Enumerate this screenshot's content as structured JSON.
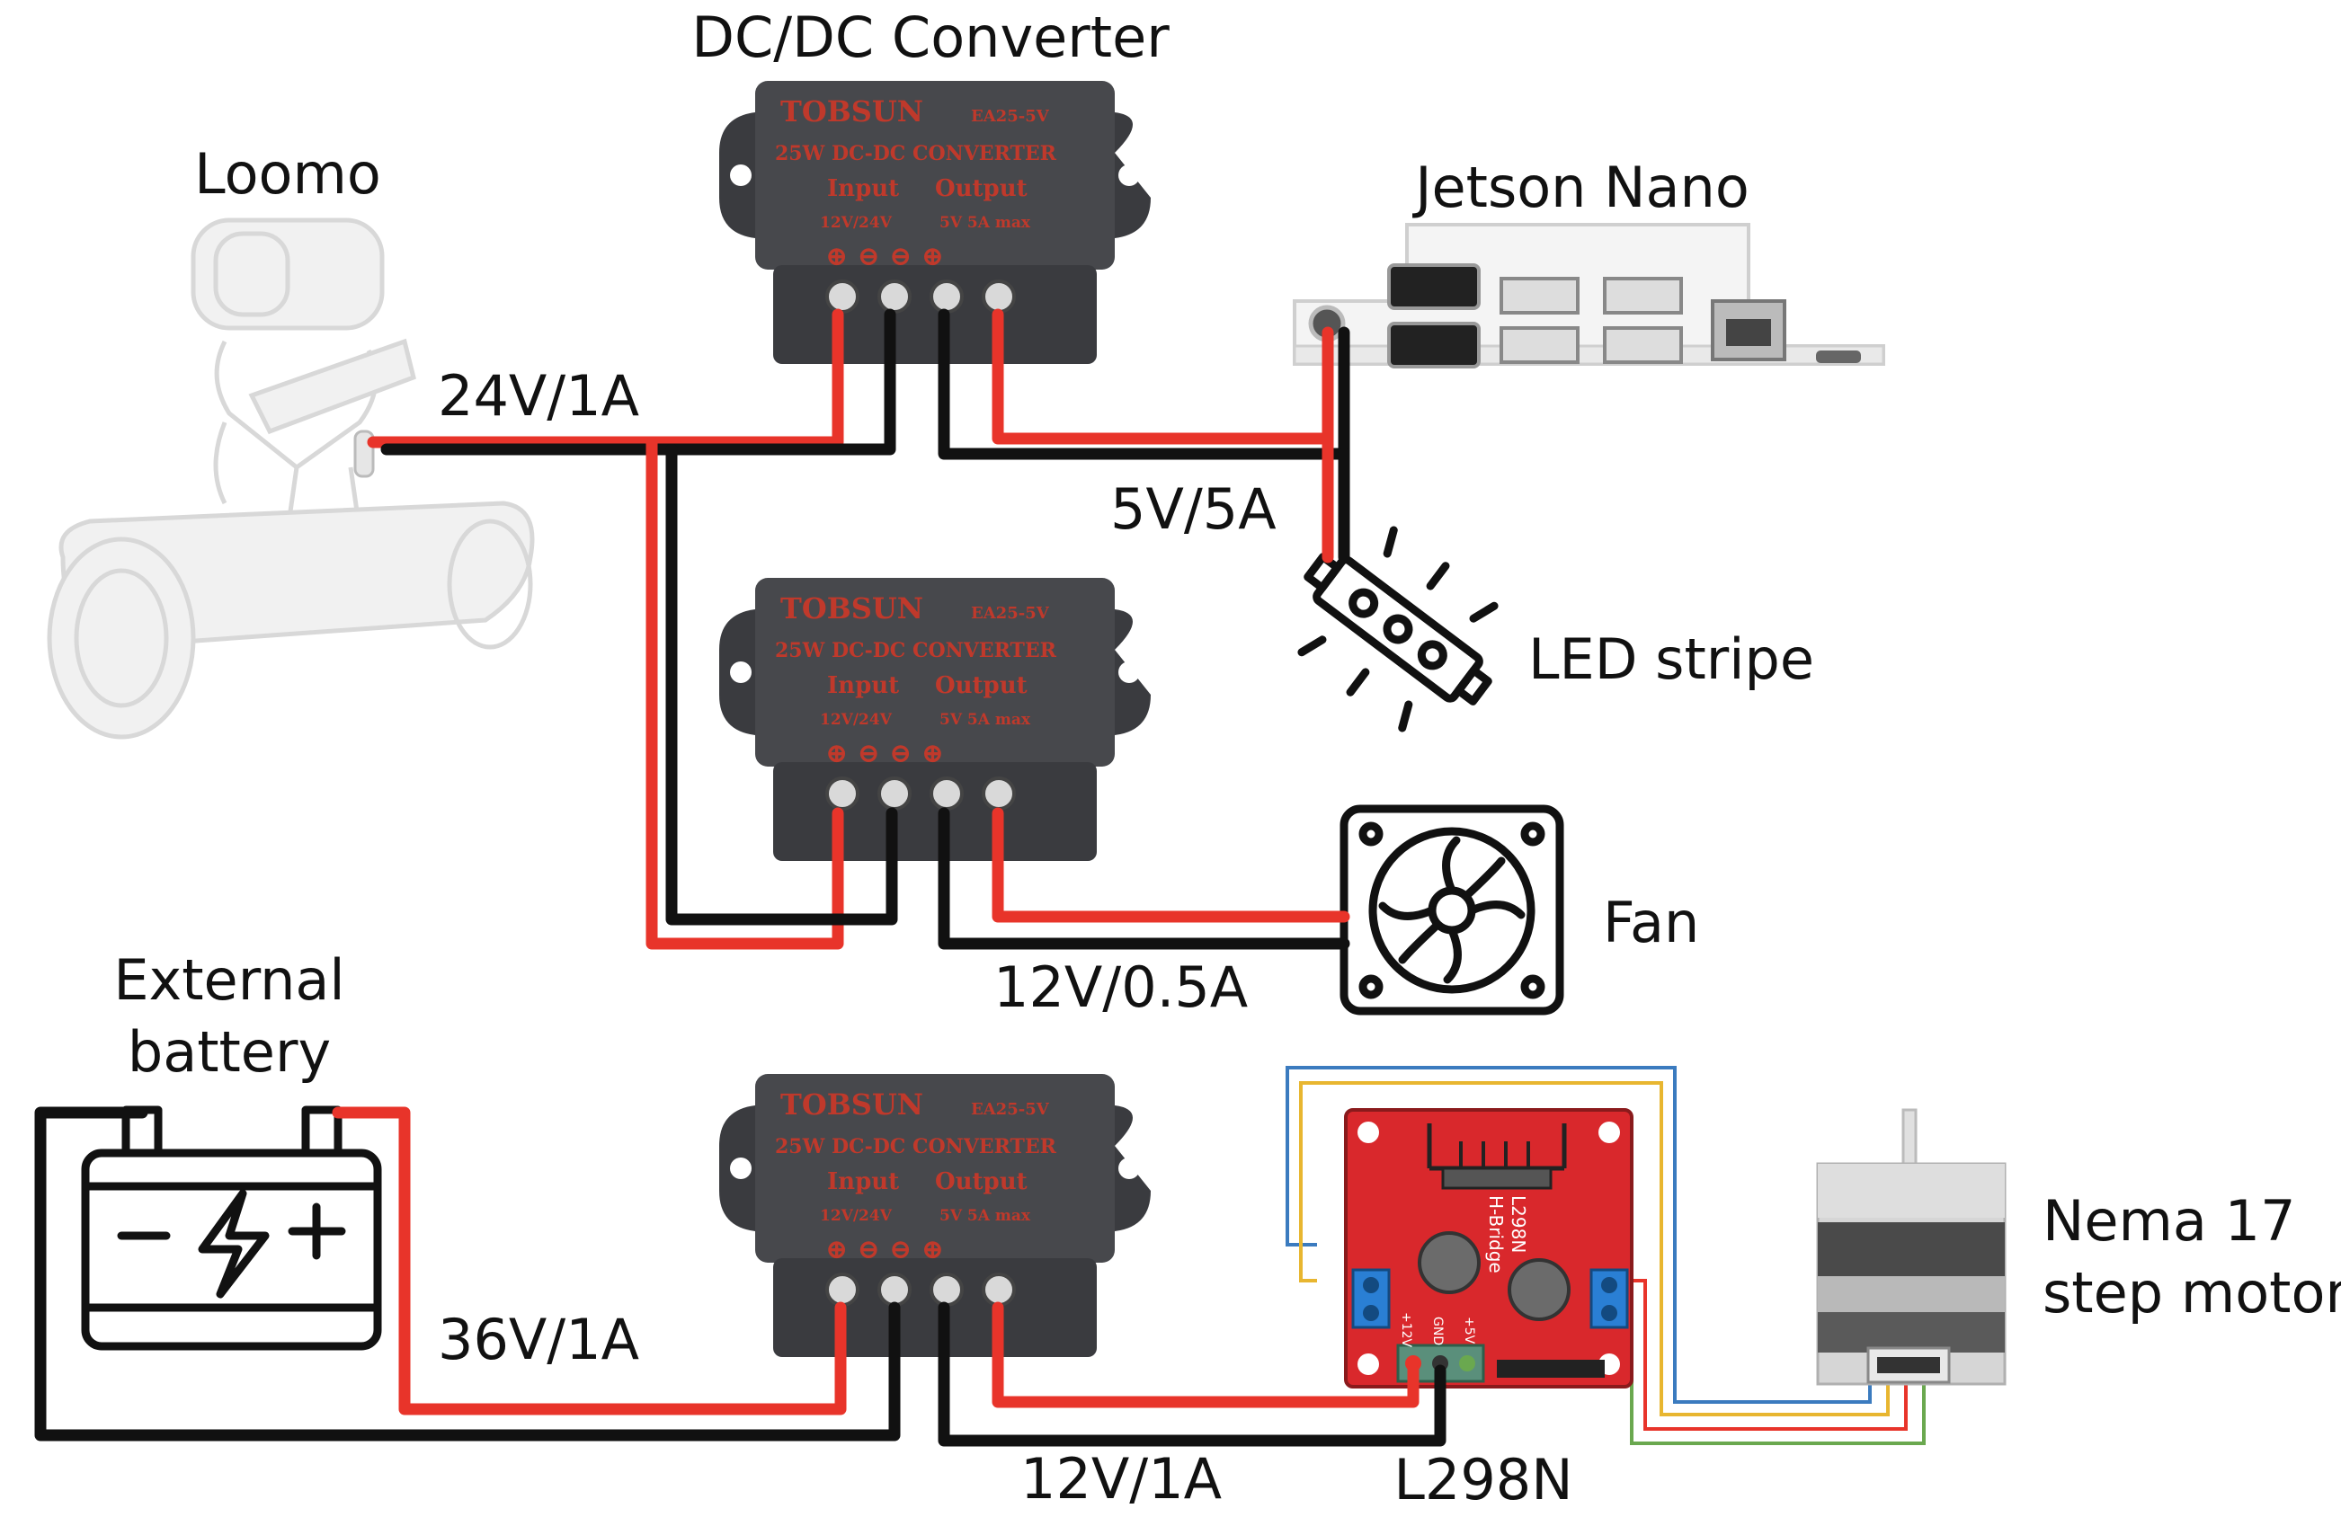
{
  "labels": {
    "converter_title": "DC/DC Converter",
    "loomo": "Loomo",
    "jetson": "Jetson Nano",
    "v24": "24V/1A",
    "v5": "5V/5A",
    "led": "LED stripe",
    "fan": "Fan",
    "v12_05": "12V/0.5A",
    "battery_line1": "External",
    "battery_line2": "battery",
    "v36": "36V/1A",
    "v12_1": "12V/1A",
    "l298n": "L298N",
    "nema_line1": "Nema 17",
    "nema_line2": "step motor"
  },
  "converter": {
    "brand": "TOBSUN",
    "model": "EA25-5V",
    "subtitle": "25W DC-DC CONVERTER",
    "input_label": "Input",
    "output_label": "Output",
    "input_range": "12V/24V",
    "output_range": "5V  5A max",
    "terminals": "⊕  ⊖  ⊖  ⊕"
  },
  "l298n_board": {
    "name": "L298N",
    "sub": "H-Bridge",
    "pin_12v": "+12V",
    "pin_gnd": "GND",
    "pin_5v": "+5V"
  },
  "colors": {
    "wire_positive": "#e8342a",
    "wire_negative": "#111111",
    "converter_body": "#47484c",
    "l298n_board": "#d9282c",
    "stepper_blue": "#3b7bbf",
    "stepper_yellow": "#e8b630",
    "stepper_red": "#e8342a",
    "stepper_green": "#6aa84f"
  },
  "icons": [
    "loomo-robot-icon",
    "dc-converter-icon",
    "jetson-board-icon",
    "led-strip-icon",
    "fan-icon",
    "battery-icon",
    "l298n-board-icon",
    "stepper-motor-icon"
  ]
}
